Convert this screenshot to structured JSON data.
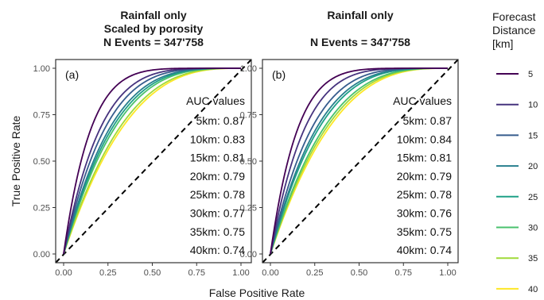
{
  "chart_data": [
    {
      "type": "line",
      "panel_label": "(a)",
      "title_lines": [
        "Rainfall only",
        "Scaled by porosity",
        "N Events = 347'758"
      ],
      "xlabel": "False Positive Rate",
      "ylabel": "True Positive Rate",
      "xlim": [
        0,
        1
      ],
      "ylim": [
        0,
        1
      ],
      "xticks": [
        "0.00",
        "0.25",
        "0.50",
        "0.75",
        "1.00"
      ],
      "yticks": [
        "0.00",
        "0.25",
        "0.50",
        "0.75",
        "1.00"
      ],
      "reference_line": "diagonal dashed",
      "auc_header": "AUC values",
      "auc_lines": [
        "5km: 0.87",
        "10km: 0.83",
        "15km: 0.81",
        "20km: 0.79",
        "25km: 0.78",
        "30km: 0.77",
        "35km: 0.75",
        "40km: 0.74"
      ],
      "series": [
        {
          "distance": 5,
          "auc": 0.87,
          "color": "#440154"
        },
        {
          "distance": 10,
          "auc": 0.83,
          "color": "#46337e"
        },
        {
          "distance": 15,
          "auc": 0.81,
          "color": "#365c8d"
        },
        {
          "distance": 20,
          "auc": 0.79,
          "color": "#277f8e"
        },
        {
          "distance": 25,
          "auc": 0.78,
          "color": "#1fa187"
        },
        {
          "distance": 30,
          "auc": 0.77,
          "color": "#4ac16d"
        },
        {
          "distance": 35,
          "auc": 0.75,
          "color": "#a0da39"
        },
        {
          "distance": 40,
          "auc": 0.74,
          "color": "#fde725"
        }
      ]
    },
    {
      "type": "line",
      "panel_label": "(b)",
      "title_lines": [
        "Rainfall only",
        "",
        "N Events = 347'758"
      ],
      "xlabel": "False Positive Rate",
      "ylabel": "True Positive Rate",
      "xlim": [
        0,
        1
      ],
      "ylim": [
        0,
        1
      ],
      "xticks": [
        "0.00",
        "0.25",
        "0.50",
        "0.75",
        "1.00"
      ],
      "yticks": [
        "0.00",
        "0.25",
        "0.50",
        "0.75",
        "1.00"
      ],
      "reference_line": "diagonal dashed",
      "auc_header": "AUC values",
      "auc_lines": [
        "5km: 0.87",
        "10km: 0.84",
        "15km: 0.81",
        "20km: 0.79",
        "25km: 0.78",
        "30km: 0.76",
        "35km: 0.75",
        "40km: 0.74"
      ],
      "series": [
        {
          "distance": 5,
          "auc": 0.87,
          "color": "#440154"
        },
        {
          "distance": 10,
          "auc": 0.84,
          "color": "#46337e"
        },
        {
          "distance": 15,
          "auc": 0.81,
          "color": "#365c8d"
        },
        {
          "distance": 20,
          "auc": 0.79,
          "color": "#277f8e"
        },
        {
          "distance": 25,
          "auc": 0.78,
          "color": "#1fa187"
        },
        {
          "distance": 30,
          "auc": 0.76,
          "color": "#4ac16d"
        },
        {
          "distance": 35,
          "auc": 0.75,
          "color": "#a0da39"
        },
        {
          "distance": 40,
          "auc": 0.74,
          "color": "#fde725"
        }
      ]
    }
  ],
  "legend": {
    "title_lines": [
      "Forecast",
      "Distance",
      "[km]"
    ],
    "entries": [
      {
        "label": "5",
        "color": "#440154"
      },
      {
        "label": "10",
        "color": "#46337e"
      },
      {
        "label": "15",
        "color": "#365c8d"
      },
      {
        "label": "20",
        "color": "#277f8e"
      },
      {
        "label": "25",
        "color": "#1fa187"
      },
      {
        "label": "30",
        "color": "#4ac16d"
      },
      {
        "label": "35",
        "color": "#a0da39"
      },
      {
        "label": "40",
        "color": "#fde725"
      }
    ]
  },
  "shared": {
    "xlabel": "False Positive Rate",
    "ylabel": "True Positive Rate"
  }
}
